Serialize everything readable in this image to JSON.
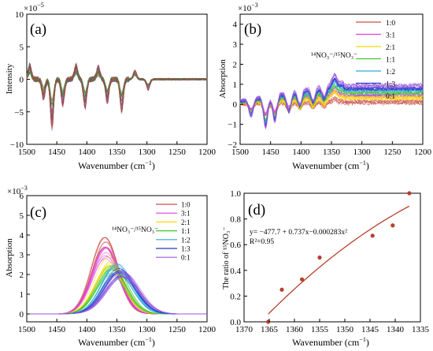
{
  "chart_data": [
    {
      "panel_label": "(a)",
      "type": "line",
      "xlabel": "Wavenumber (cm",
      "xlabel_sup": "−1",
      "xlabel_end": ")",
      "ylabel": "Intensity",
      "y_multiplier": "×10",
      "y_multiplier_exp": "−5",
      "xlim": [
        1500,
        1200
      ],
      "ylim": [
        -10,
        10
      ],
      "xticks": [
        "1500",
        "1450",
        "1400",
        "1350",
        "1300",
        "1250",
        "1200"
      ],
      "yticks": [
        "10",
        "5",
        "0",
        "−5",
        "−10"
      ],
      "features_cm1": [
        1495,
        1472,
        1458,
        1440,
        1418,
        1403,
        1381,
        1366,
        1342,
        1320,
        1298
      ],
      "series_count": 40
    },
    {
      "panel_label": "(b)",
      "type": "line",
      "xlabel": "Wavenumber (cm",
      "xlabel_sup": "−1",
      "xlabel_end": ")",
      "ylabel": "Absorption",
      "y_multiplier": "×10",
      "y_multiplier_exp": "−3",
      "xlim": [
        1500,
        1200
      ],
      "ylim": [
        -2,
        4.5
      ],
      "xticks": [
        "1500",
        "1450",
        "1400",
        "1350",
        "1300",
        "1250",
        "1200"
      ],
      "yticks": [
        "4",
        "3",
        "2",
        "1",
        "0",
        "−1",
        "−2"
      ],
      "legend_title": "¹⁴NO₃⁻/¹⁵NO₃⁻",
      "legend_position": "top-right",
      "series": [
        {
          "name": "1:0",
          "color": "#c8504a",
          "offset": 0.1
        },
        {
          "name": "3:1",
          "color": "#e040e0",
          "offset": 0.45
        },
        {
          "name": "2:1",
          "color": "#ffd800",
          "offset": 0.3
        },
        {
          "name": "1:1",
          "color": "#40c830",
          "offset": 0.55
        },
        {
          "name": "1:2",
          "color": "#30a8d8",
          "offset": 0.7
        },
        {
          "name": "1:3",
          "color": "#2838c8",
          "offset": 0.8
        },
        {
          "name": "0:1",
          "color": "#9a58e0",
          "offset": 0.9
        }
      ]
    },
    {
      "panel_label": "(c)",
      "type": "line",
      "xlabel": "Wavenumber (cm",
      "xlabel_sup": "−1",
      "xlabel_end": ")",
      "ylabel": "Absorption",
      "y_multiplier": "×10",
      "y_multiplier_exp": "−3",
      "xlim": [
        1500,
        1200
      ],
      "ylim": [
        -0.4,
        6
      ],
      "xticks": [
        "1500",
        "1450",
        "1400",
        "1350",
        "1300",
        "1250",
        "1200"
      ],
      "yticks": [
        "6",
        "5",
        "4",
        "3",
        "2",
        "1",
        "0"
      ],
      "legend_title": "¹⁴NO₃⁻/¹⁵NO₃⁻",
      "legend_position": "top-right",
      "series": [
        {
          "name": "1:0",
          "color": "#c8504a",
          "center": 1370,
          "peak": 3.5,
          "sigma": 26
        },
        {
          "name": "3:1",
          "color": "#e040e0",
          "center": 1368,
          "peak": 3.1,
          "sigma": 27
        },
        {
          "name": "2:1",
          "color": "#ffd800",
          "center": 1362,
          "peak": 2.6,
          "sigma": 28
        },
        {
          "name": "1:1",
          "color": "#40c830",
          "center": 1358,
          "peak": 2.2,
          "sigma": 29
        },
        {
          "name": "1:2",
          "color": "#30a8d8",
          "center": 1350,
          "peak": 2.3,
          "sigma": 30
        },
        {
          "name": "1:3",
          "color": "#2838c8",
          "center": 1345,
          "peak": 2.1,
          "sigma": 31
        },
        {
          "name": "0:1",
          "color": "#9a58e0",
          "center": 1340,
          "peak": 2.0,
          "sigma": 32
        }
      ]
    },
    {
      "panel_label": "(d)",
      "type": "scatter",
      "xlabel": "Wavenumber (cm",
      "xlabel_sup": "−1",
      "xlabel_end": ")",
      "ylabel": "The ratio of ¹⁵NO₃⁻",
      "xlim": [
        1370,
        1335
      ],
      "ylim": [
        0.0,
        1.0
      ],
      "xticks": [
        "1370",
        "1365",
        "1360",
        "1355",
        "1350",
        "1345",
        "1340",
        "1335"
      ],
      "yticks": [
        "1.0",
        "0.8",
        "0.6",
        "0.4",
        "0.2",
        "0.0"
      ],
      "annotation": "y= −477.7 + 0.737x−0.000283x²",
      "annotation_r2": "R²=0.95",
      "point_color": "#b5412c",
      "points": [
        {
          "x": 1365.2,
          "y": 0.0
        },
        {
          "x": 1362.5,
          "y": 0.25
        },
        {
          "x": 1358.5,
          "y": 0.33
        },
        {
          "x": 1355.0,
          "y": 0.5
        },
        {
          "x": 1344.5,
          "y": 0.67
        },
        {
          "x": 1340.5,
          "y": 0.75
        },
        {
          "x": 1337.2,
          "y": 1.0
        }
      ],
      "fit": {
        "type": "quadratic",
        "from": 1365.2,
        "to": 1337.2,
        "y_from": 0.06,
        "y_mid_x": 1351,
        "y_mid": 0.55,
        "y_to": 0.9
      }
    }
  ]
}
